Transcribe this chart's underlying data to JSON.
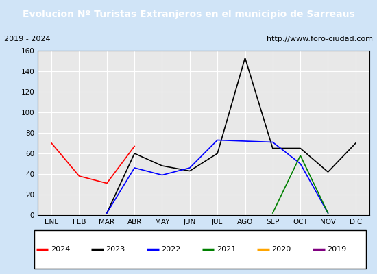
{
  "title": "Evolucion Nº Turistas Extranjeros en el municipio de Sarreaus",
  "subtitle_left": "2019 - 2024",
  "subtitle_right": "http://www.foro-ciudad.com",
  "title_bg_color": "#5b9bd5",
  "title_text_color": "white",
  "months": [
    "ENE",
    "FEB",
    "MAR",
    "ABR",
    "MAY",
    "JUN",
    "JUL",
    "AGO",
    "SEP",
    "OCT",
    "NOV",
    "DIC"
  ],
  "ylim": [
    0,
    160
  ],
  "yticks": [
    0,
    20,
    40,
    60,
    80,
    100,
    120,
    140,
    160
  ],
  "series": {
    "2024": {
      "color": "red",
      "data": [
        70,
        38,
        31,
        67,
        null,
        null,
        null,
        null,
        null,
        null,
        null,
        null
      ]
    },
    "2023": {
      "color": "black",
      "data": [
        null,
        null,
        2,
        60,
        48,
        43,
        60,
        153,
        65,
        65,
        42,
        70
      ]
    },
    "2022": {
      "color": "blue",
      "data": [
        null,
        null,
        2,
        46,
        39,
        46,
        73,
        72,
        71,
        50,
        2,
        null
      ]
    },
    "2021": {
      "color": "green",
      "data": [
        null,
        null,
        null,
        null,
        null,
        null,
        null,
        null,
        2,
        58,
        2,
        null
      ]
    },
    "2020": {
      "color": "orange",
      "data": [
        null,
        null,
        null,
        null,
        null,
        null,
        null,
        null,
        null,
        null,
        null,
        null
      ]
    },
    "2019": {
      "color": "purple",
      "data": [
        null,
        null,
        null,
        null,
        null,
        null,
        null,
        null,
        null,
        null,
        null,
        null
      ]
    }
  },
  "legend_order": [
    "2024",
    "2023",
    "2022",
    "2021",
    "2020",
    "2019"
  ],
  "plot_bg_color": "#e8e8e8",
  "grid_color": "white",
  "outer_bg": "#d0e4f7"
}
